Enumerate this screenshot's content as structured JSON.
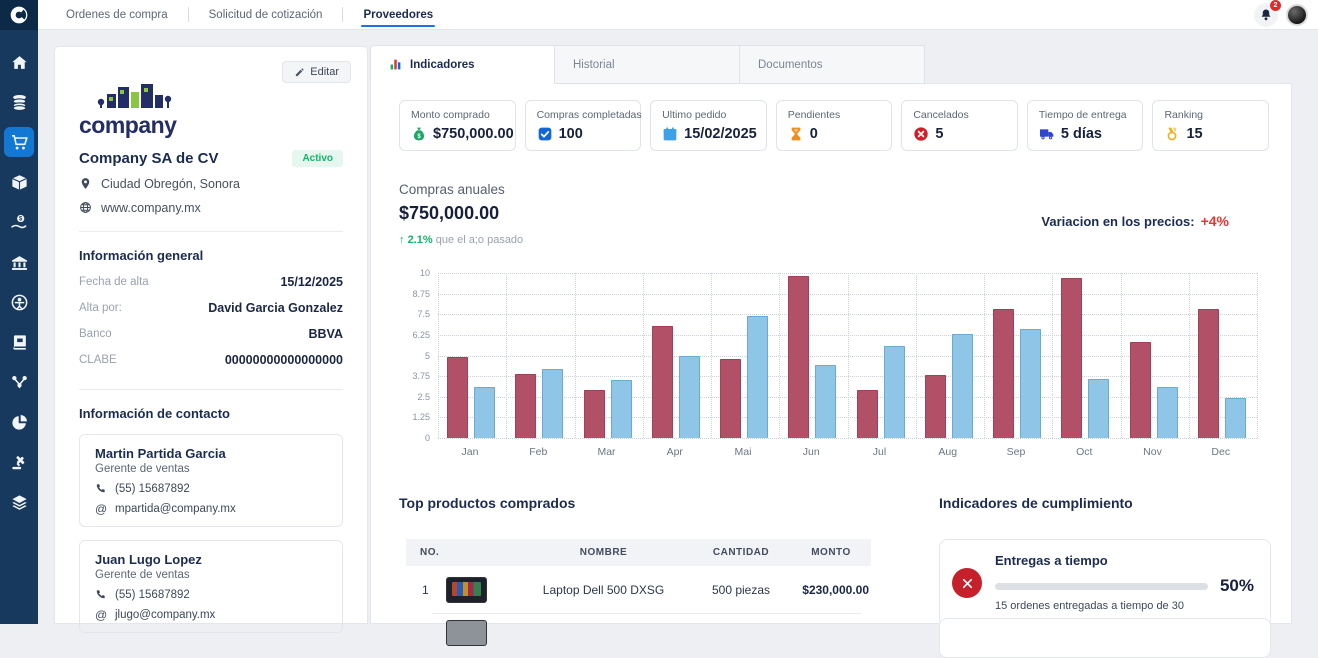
{
  "topbar": {
    "nav": [
      {
        "id": "ordenes-de-compra",
        "label": "Ordenes de compra",
        "active": false
      },
      {
        "id": "solicitud-de-cotizacion",
        "label": "Solicitud de cotización",
        "active": false
      },
      {
        "id": "proveedores",
        "label": "Proveedores",
        "active": true
      }
    ],
    "notification_count": "2"
  },
  "sidebar": {
    "items": [
      {
        "id": "home",
        "icon": "home-icon",
        "active": false
      },
      {
        "id": "coins",
        "icon": "coins-icon",
        "active": false
      },
      {
        "id": "cart",
        "icon": "cart-icon",
        "active": true
      },
      {
        "id": "package",
        "icon": "package-icon",
        "active": false
      },
      {
        "id": "hand-money",
        "icon": "hand-money-icon",
        "active": false
      },
      {
        "id": "bank",
        "icon": "bank-icon",
        "active": false
      },
      {
        "id": "person",
        "icon": "person-circle-icon",
        "active": false
      },
      {
        "id": "book",
        "icon": "book-icon",
        "active": false
      },
      {
        "id": "network",
        "icon": "network-icon",
        "active": false
      },
      {
        "id": "pie",
        "icon": "pie-chart-icon",
        "active": false
      },
      {
        "id": "gavel",
        "icon": "gavel-icon",
        "active": false
      },
      {
        "id": "layers",
        "icon": "layers-icon",
        "active": false
      }
    ]
  },
  "supplier_panel": {
    "edit_button": "Editar",
    "logo_text": "company",
    "name": "Company SA de CV",
    "status": "Activo",
    "status_color": "#17b26a",
    "location": "Ciudad Obregón, Sonora",
    "website": "www.company.mx",
    "general_info": {
      "title": "Información general",
      "rows": [
        {
          "label": "Fecha de alta",
          "value": "15/12/2025"
        },
        {
          "label": "Alta por:",
          "value": "David Garcia Gonzalez"
        },
        {
          "label": "Banco",
          "value": "BBVA"
        },
        {
          "label": "CLABE",
          "value": "00000000000000000"
        }
      ]
    },
    "contact_info": {
      "title": "Información de contacto",
      "contacts": [
        {
          "name": "Martin Partida Garcia",
          "role": "Gerente de ventas",
          "phone": "(55) 15687892",
          "email": "mpartida@company.mx"
        },
        {
          "name": "Juan Lugo Lopez",
          "role": "Gerente de ventas",
          "phone": "(55) 15687892",
          "email": "jlugo@company.mx"
        }
      ]
    }
  },
  "main": {
    "tabs": [
      {
        "id": "indicadores",
        "label": "Indicadores",
        "active": true,
        "icon": "bar-chart-icon"
      },
      {
        "id": "historial",
        "label": "Historial",
        "active": false
      },
      {
        "id": "documentos",
        "label": "Documentos",
        "active": false
      }
    ],
    "kpis": [
      {
        "label": "Monto comprado",
        "value": "$750,000.00",
        "icon": "money-bag-icon",
        "color": "#1fa564"
      },
      {
        "label": "Compras completadas",
        "value": "100",
        "icon": "checkbox-icon",
        "color": "#1266d8"
      },
      {
        "label": "Ultimo pedido",
        "value": "15/02/2025",
        "icon": "calendar-icon",
        "color": "#3fa0ea"
      },
      {
        "label": "Pendientes",
        "value": "0",
        "icon": "hourglass-icon",
        "color": "#ef8d1e"
      },
      {
        "label": "Cancelados",
        "value": "5",
        "icon": "cancel-circle-icon",
        "color": "#cf1f25"
      },
      {
        "label": "Tiempo de entrega",
        "value": "5 días",
        "icon": "truck-icon",
        "color": "#2f46d1"
      },
      {
        "label": "Ranking",
        "value": "15",
        "icon": "medal-icon",
        "color": "#f0b01c"
      }
    ],
    "annual": {
      "title": "Compras anuales",
      "amount": "$750,000.00",
      "trend_arrow": "↑",
      "trend_value": "2.1%",
      "trend_text": "que el a;o pasado",
      "variation_label": "Variacion en los precios:",
      "variation_value": "+4%",
      "variation_color": "#e63532"
    },
    "top_products": {
      "title": "Top productos comprados",
      "columns": [
        "NO.",
        "NOMBRE",
        "CANTIDAD",
        "MONTO"
      ],
      "rows": [
        {
          "no": "1",
          "name": "Laptop Dell 500 DXSG",
          "qty": "500 piezas",
          "amount": "$230,000.00"
        }
      ]
    },
    "compliance": {
      "title": "Indicadores de cumplimiento",
      "cards": [
        {
          "title": "Entregas a tiempo",
          "percent": 50,
          "percent_label": "50%",
          "subtitle": "15 ordenes entregadas a tiempo de 30",
          "status_icon": "x-circle-icon",
          "bar_color": "#c22127"
        }
      ]
    }
  },
  "chart_data": {
    "type": "bar",
    "title": "Compras anuales",
    "categories": [
      "Jan",
      "Feb",
      "Mar",
      "Apr",
      "Mai",
      "Jun",
      "Jul",
      "Aug",
      "Sep",
      "Oct",
      "Nov",
      "Dec"
    ],
    "series": [
      {
        "name": "series-1",
        "color": "#b25068",
        "values": [
          4.9,
          3.9,
          2.9,
          6.8,
          4.8,
          9.8,
          2.9,
          3.8,
          7.8,
          9.7,
          5.8,
          7.8
        ]
      },
      {
        "name": "series-2",
        "color": "#8fc6e8",
        "values": [
          3.1,
          4.2,
          3.5,
          5.0,
          7.4,
          4.4,
          5.6,
          6.3,
          6.6,
          3.6,
          3.1,
          2.4
        ]
      }
    ],
    "yticks": [
      0,
      1.25,
      2.5,
      3.75,
      5,
      6.25,
      7.5,
      8.75,
      10
    ],
    "ylim": [
      0,
      10
    ],
    "xlabel": "",
    "ylabel": "",
    "grid": "dotted",
    "legend": "none"
  }
}
